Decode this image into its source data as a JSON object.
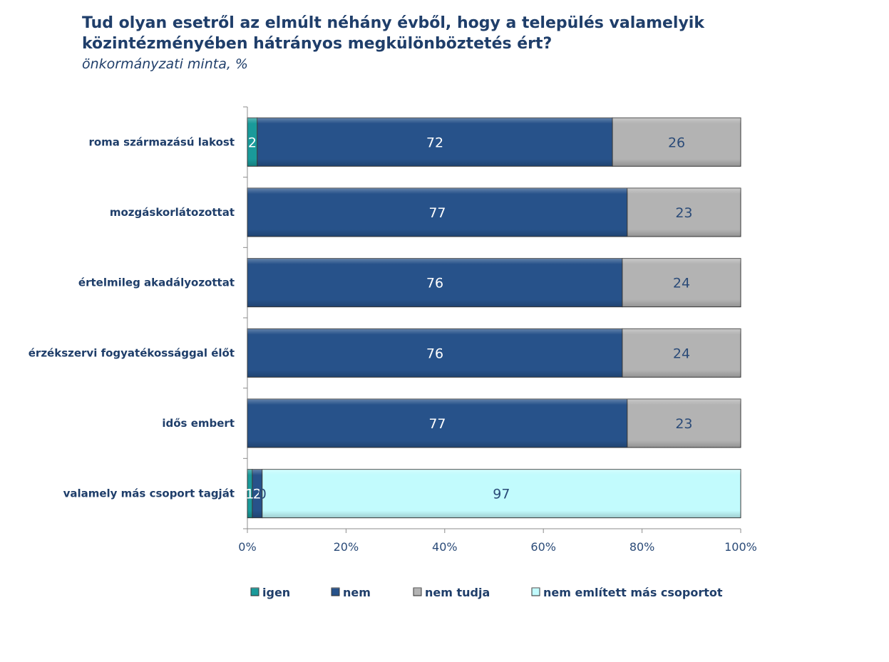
{
  "header": {
    "title": "Tud olyan esetről az elmúlt néhány évből, hogy a település valamelyik közintézményében hátrányos megkülönböztetés ért?",
    "subtitle": "önkormányzati minta, %"
  },
  "chart_data": {
    "type": "bar",
    "orientation": "horizontal",
    "stacked": "percent",
    "title": "Tud olyan esetről az elmúlt néhány évből, hogy a település valamelyik közintézményében hátrányos megkülönböztetés ért?",
    "subtitle": "önkormányzati minta, %",
    "categories": [
      "roma származású lakost",
      "mozgáskorlátozottat",
      "értelmileg akadályozottat",
      "érzékszervi fogyatékossággal élőt",
      "idős embert",
      "valamely más csoport tagját"
    ],
    "series": [
      {
        "name": "igen",
        "color": "#1a9a9a",
        "label_color": "#ffffff",
        "values": [
          2,
          0,
          0,
          0,
          0,
          1
        ]
      },
      {
        "name": "nem",
        "color": "#27528a",
        "label_color": "#ffffff",
        "values": [
          72,
          77,
          76,
          76,
          77,
          2
        ]
      },
      {
        "name": "nem tudja",
        "color": "#b3b3b3",
        "label_color": "#2b4b78",
        "values": [
          26,
          23,
          24,
          24,
          23,
          0
        ]
      },
      {
        "name": "nem említett más csoportot",
        "color": "#c2fbfd",
        "label_color": "#2b4b78",
        "values": [
          0,
          0,
          0,
          0,
          0,
          97
        ]
      }
    ],
    "data_labels": [
      [
        "2",
        "72",
        "26",
        ""
      ],
      [
        "",
        "77",
        "23",
        ""
      ],
      [
        "",
        "76",
        "24",
        ""
      ],
      [
        "",
        "76",
        "24",
        ""
      ],
      [
        "",
        "77",
        "23",
        ""
      ],
      [
        "1",
        "2",
        "0",
        "97"
      ]
    ],
    "x_ticks": [
      "0%",
      "20%",
      "40%",
      "60%",
      "80%",
      "100%"
    ],
    "xlim": [
      0,
      100
    ],
    "grid": false,
    "legend_position": "bottom"
  }
}
